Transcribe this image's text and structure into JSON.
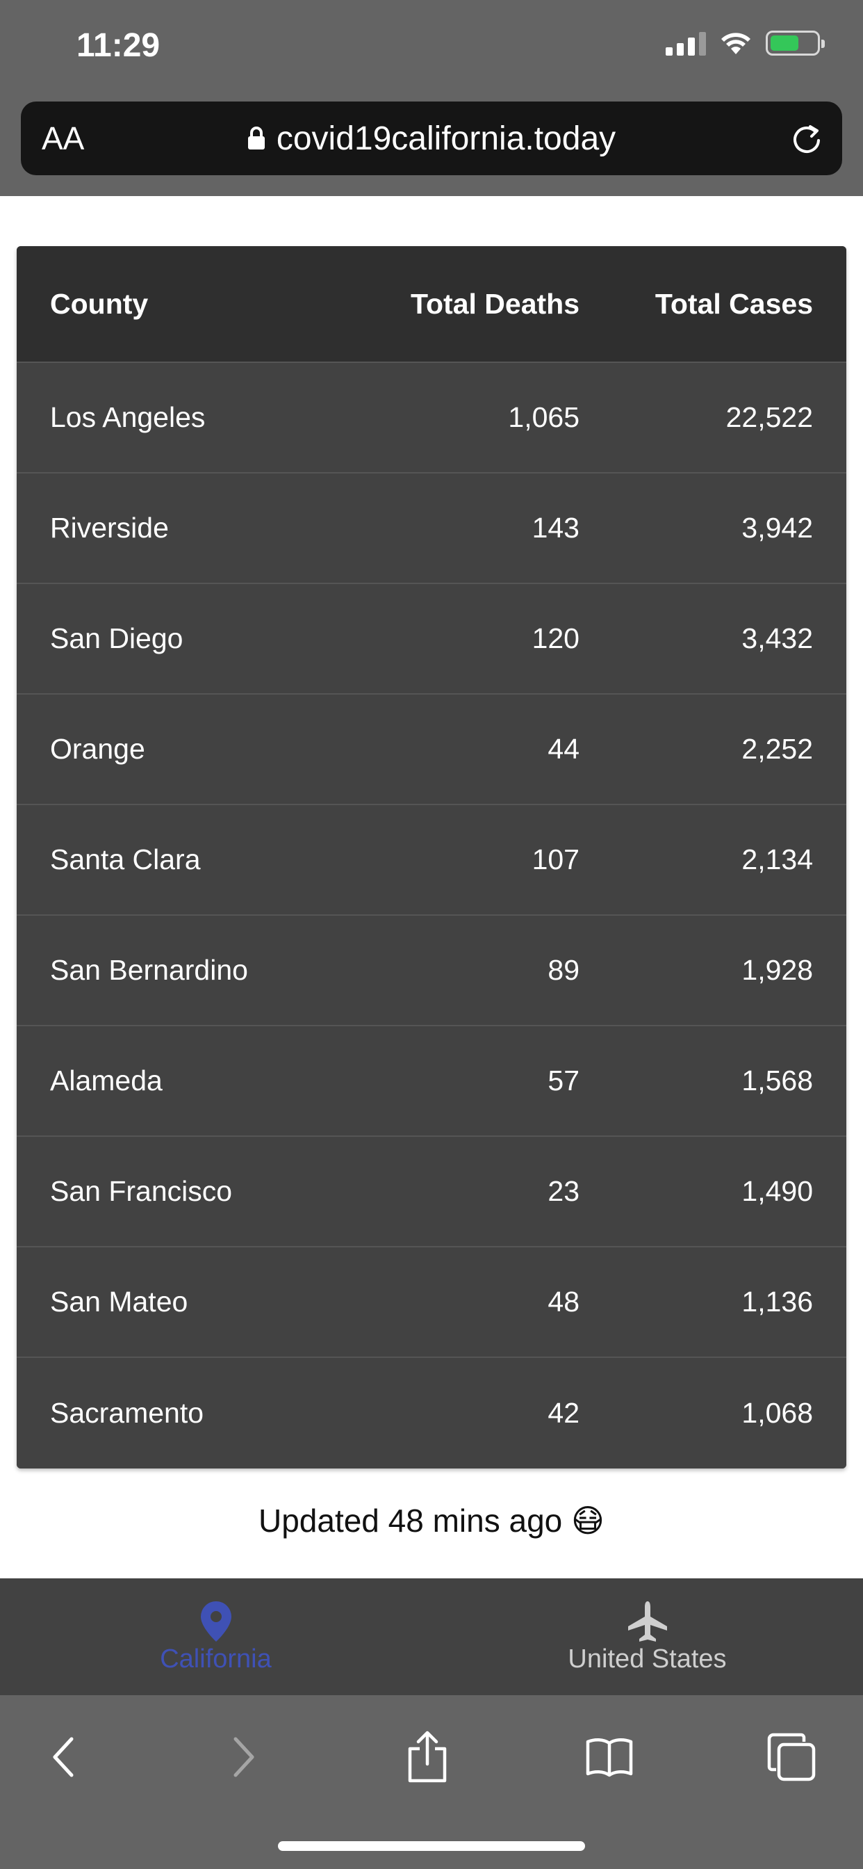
{
  "status_bar": {
    "time": "11:29",
    "icons": [
      "cellular-signal-icon",
      "wifi-icon",
      "battery-charging-icon"
    ]
  },
  "address_bar": {
    "text_size_label": "AA",
    "url": "covid19california.today",
    "lock_icon": "lock-icon",
    "reload_icon": "reload-icon"
  },
  "table": {
    "headers": {
      "county": "County",
      "deaths": "Total Deaths",
      "cases": "Total Cases"
    },
    "rows": [
      {
        "county": "Los Angeles",
        "deaths": "1,065",
        "cases": "22,522"
      },
      {
        "county": "Riverside",
        "deaths": "143",
        "cases": "3,942"
      },
      {
        "county": "San Diego",
        "deaths": "120",
        "cases": "3,432"
      },
      {
        "county": "Orange",
        "deaths": "44",
        "cases": "2,252"
      },
      {
        "county": "Santa Clara",
        "deaths": "107",
        "cases": "2,134"
      },
      {
        "county": "San Bernardino",
        "deaths": "89",
        "cases": "1,928"
      },
      {
        "county": "Alameda",
        "deaths": "57",
        "cases": "1,568"
      },
      {
        "county": "San Francisco",
        "deaths": "23",
        "cases": "1,490"
      },
      {
        "county": "San Mateo",
        "deaths": "48",
        "cases": "1,136"
      },
      {
        "county": "Sacramento",
        "deaths": "42",
        "cases": "1,068"
      }
    ]
  },
  "updated": {
    "text": "Updated 48 mins ago",
    "emoji": "😷"
  },
  "app_tabs": [
    {
      "label": "California",
      "icon": "map-pin-icon",
      "active": true
    },
    {
      "label": "United States",
      "icon": "airplane-icon",
      "active": false
    }
  ],
  "toolbar": {
    "icons": [
      "back-icon",
      "forward-icon",
      "share-icon",
      "bookmarks-icon",
      "tabs-icon"
    ]
  },
  "colors": {
    "chrome": "#646464",
    "table_header": "#2f2f2f",
    "table_row": "#424242",
    "active_tab": "#3f51b5"
  }
}
